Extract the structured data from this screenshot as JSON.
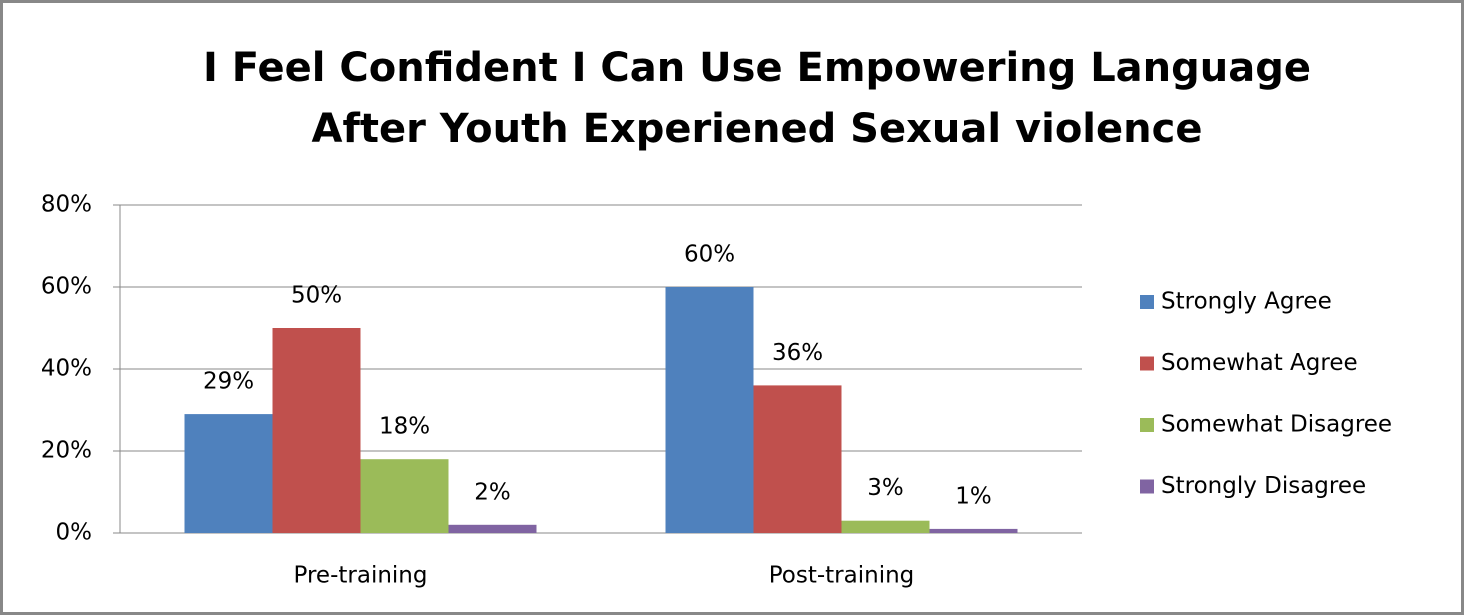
{
  "chart_data": {
    "type": "bar",
    "title": [
      "I Feel Confident I Can Use Empowering Language",
      "After Youth Experiened Sexual violence"
    ],
    "categories": [
      "Pre-training",
      "Post-training"
    ],
    "series": [
      {
        "name": "Strongly Agree",
        "color": "#4f81bd",
        "values": [
          29,
          60
        ],
        "value_labels": [
          "29%",
          "60%"
        ]
      },
      {
        "name": "Somewhat Agree",
        "color": "#c0504d",
        "values": [
          50,
          36
        ],
        "value_labels": [
          "50%",
          "36%"
        ]
      },
      {
        "name": "Somewhat Disagree",
        "color": "#9bbb59",
        "values": [
          18,
          3
        ],
        "value_labels": [
          "18%",
          "3%"
        ]
      },
      {
        "name": "Strongly Disagree",
        "color": "#8064a2",
        "values": [
          2,
          1
        ],
        "value_labels": [
          "2%",
          "1%"
        ]
      }
    ],
    "ylim": [
      0,
      80
    ],
    "yticks": [
      {
        "value": 0,
        "label": "0%"
      },
      {
        "value": 20,
        "label": "20%"
      },
      {
        "value": 40,
        "label": "40%"
      },
      {
        "value": 60,
        "label": "60%"
      },
      {
        "value": 80,
        "label": "80%"
      }
    ],
    "grid": true,
    "legend": "right"
  }
}
